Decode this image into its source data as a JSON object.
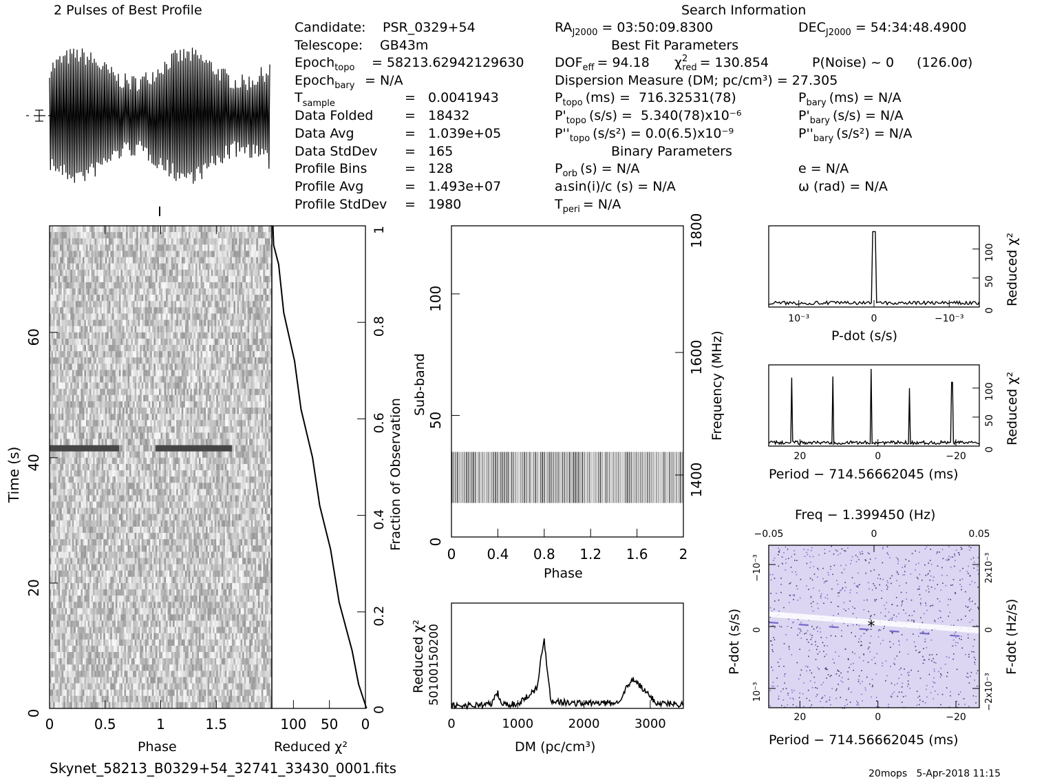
{
  "header": {
    "profile_title": "2 Pulses of Best Profile",
    "search_title": "Search Information",
    "best_fit_title": "Best Fit Parameters",
    "binary_title": "Binary Parameters"
  },
  "candidate_info": [
    {
      "label": "Candidate:",
      "value": "PSR_0329+54"
    },
    {
      "label": "Telescope:",
      "value": "GB43m"
    },
    {
      "label": "Epoch",
      "sub": "topo",
      "value": "= 58213.62942129630"
    },
    {
      "label": "Epoch",
      "sub": "bary",
      "value": "= N/A"
    },
    {
      "label": "T",
      "sub": "sample",
      "value": "=   0.0041943"
    },
    {
      "label": "Data Folded",
      "value": "=   18432"
    },
    {
      "label": "Data Avg",
      "value": "=   1.039e+05"
    },
    {
      "label": "Data StdDev",
      "value": "=   165"
    },
    {
      "label": "Profile Bins",
      "value": "=   128"
    },
    {
      "label": "Profile Avg",
      "value": "=   1.493e+07"
    },
    {
      "label": "Profile StdDev",
      "value": "=   1980"
    }
  ],
  "search_info": {
    "ra": "= 03:50:09.8300",
    "dec": "= 54:34:48.4900",
    "dof": "= 94.18",
    "chi2_red": "= 130.854",
    "p_noise": "P(Noise) ~ 0",
    "sigma": "(126.0σ)",
    "dm_line": "Dispersion Measure (DM; pc/cm³) = 27.305",
    "p_topo": "(ms) =  716.32531(78)",
    "p_bary": "(ms) = N/A",
    "pd_topo": "(s/s) =  5.340(78)x10⁻⁶",
    "pd_bary": "(s/s) = N/A",
    "pdd_topo": "(s/s²) = 0.0(6.5)x10⁻⁹",
    "pdd_bary": "(s/s²) = N/A",
    "p_orb": "(s) = N/A",
    "a1sini": "a₁sin(i)/c (s) = N/A",
    "t_peri": "= N/A",
    "e": "e = N/A",
    "omega": "ω (rad) = N/A"
  },
  "footer": {
    "filename": "Skynet_58213_B0329+54_32741_33430_0001.fits",
    "stamp": "20mops   5-Apr-2018 11:15"
  },
  "colors": {
    "ink": "#000000",
    "purple": "#7a6fd0",
    "purple_bg": "#ddd8f2"
  },
  "chart_data": [
    {
      "type": "line",
      "name": "profile",
      "title": "2 Pulses of Best Profile",
      "x_range": [
        0,
        2
      ],
      "note_visible": "dense noisy profile spanning two pulses"
    },
    {
      "type": "heatmap",
      "name": "time-phase",
      "xlabel": "Phase",
      "ylabel": "Time (s)",
      "xlim": [
        0,
        2
      ],
      "ylim": [
        0,
        77
      ],
      "xticks": [
        "0",
        "0.5",
        "1",
        "1.5"
      ],
      "yticks": [
        "0",
        "20",
        "40",
        "60"
      ]
    },
    {
      "type": "line",
      "name": "reduced-chi2-vs-fraction",
      "xlabel": "Reduced χ²",
      "ylabel": "Fraction of Observation",
      "xlim": [
        130,
        0
      ],
      "ylim": [
        0,
        1
      ],
      "xticks": [
        "100",
        "50",
        "0"
      ],
      "yticks": [
        "0.2",
        "0.4",
        "0.6",
        "0.8",
        "1"
      ],
      "x": [
        0,
        8,
        20,
        35,
        50,
        62,
        75,
        88,
        100,
        112,
        122,
        126,
        130
      ],
      "y": [
        0,
        0.05,
        0.12,
        0.22,
        0.33,
        0.42,
        0.52,
        0.62,
        0.72,
        0.82,
        0.92,
        0.96,
        1
      ]
    },
    {
      "type": "heatmap",
      "name": "subband-phase",
      "xlabel": "Phase",
      "ylabel": "Sub-band",
      "y2label": "Frequency (MHz)",
      "xlim": [
        0,
        2
      ],
      "ylim": [
        0,
        128
      ],
      "xticks": [
        "0",
        "0.4",
        "0.8",
        "1.2",
        "1.6",
        "2"
      ],
      "yticks": [
        "0",
        "50",
        "100"
      ],
      "y2ticks": [
        "1400",
        "1600",
        "1800"
      ],
      "band_rows": [
        14,
        35
      ]
    },
    {
      "type": "line",
      "name": "dm-curve",
      "xlabel": "DM (pc/cm³)",
      "ylabel": "Reduced χ²",
      "xlim": [
        0,
        3500
      ],
      "xticks": [
        "0",
        "1000",
        "2000",
        "3000"
      ],
      "ytick_label": "50100150200",
      "x": [
        0,
        300,
        600,
        700,
        750,
        1000,
        1300,
        1350,
        1400,
        1450,
        1500,
        1800,
        2500,
        2650,
        2750,
        2900,
        3100,
        3500
      ],
      "y": [
        5,
        6,
        8,
        30,
        8,
        8,
        40,
        95,
        130,
        70,
        15,
        10,
        10,
        40,
        55,
        35,
        10,
        8
      ]
    },
    {
      "type": "line",
      "name": "pdot-chi2",
      "xlabel": "P-dot (s/s)",
      "ylabel": "Reduced χ²",
      "xticks": [
        "10⁻³",
        "0",
        "−10⁻³"
      ],
      "yticks": [
        "0",
        "50",
        "100"
      ],
      "x": [
        0.0014,
        0.0005,
        0.0001,
        0,
        -0.0001,
        -0.0005,
        -0.0014
      ],
      "y": [
        5,
        6,
        10,
        130,
        10,
        6,
        5
      ]
    },
    {
      "type": "line",
      "name": "period-chi2",
      "xlabel": "Period − 714.56662045 (ms)",
      "ylabel": "Reduced χ²",
      "xticks": [
        "20",
        "0",
        "−20"
      ],
      "yticks": [
        "0",
        "50",
        "100"
      ],
      "peaks_x": [
        22,
        11.5,
        1.7,
        -8,
        -19
      ],
      "peaks_y": [
        118,
        120,
        133,
        100,
        110
      ]
    },
    {
      "type": "heatmap",
      "name": "period-pdot",
      "title": "Freq − 1.399450 (Hz)",
      "xlabel": "Period − 714.56662045 (ms)",
      "ylabel": "P-dot (s/s)",
      "y2label": "F-dot (Hz/s)",
      "xticks": [
        "20",
        "0",
        "−20"
      ],
      "topticks": [
        "−0.05",
        "0",
        "0.05"
      ],
      "yticks": [
        "−10⁻³",
        "0",
        "10⁻³"
      ],
      "y2ticks": [
        "2x10⁻³",
        "0",
        "−2x10⁻³"
      ],
      "best": {
        "x": 1.7,
        "y": 0
      }
    }
  ]
}
